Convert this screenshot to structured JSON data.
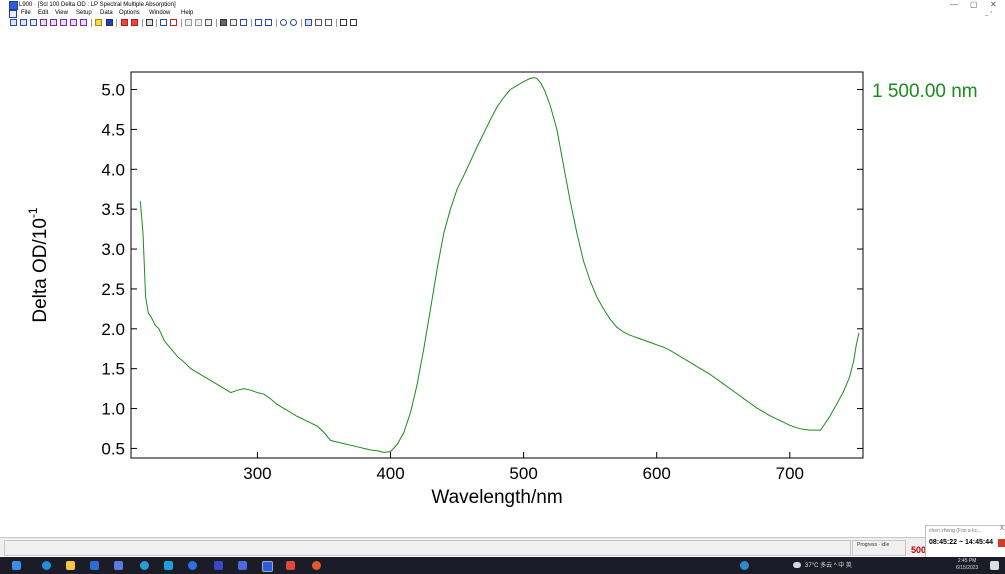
{
  "window": {
    "title": "L900 · [Scl 100 Delta OD : LP Spectral Multiple Absorption]",
    "minimize": "—",
    "maximize": "▢",
    "close": "✕",
    "mdi_buttons": "_ ▫"
  },
  "menu": [
    "File",
    "Edit",
    "View",
    "Setup",
    "Data",
    "Options",
    "Window",
    "Help"
  ],
  "chart_data": {
    "type": "line",
    "title": "",
    "xlabel": "Wavelength/nm",
    "ylabel_main": "Delta OD/10",
    "ylabel_sup": "-1",
    "xlim": [
      205,
      755
    ],
    "ylim": [
      0.38,
      5.22
    ],
    "xticks": [
      "300",
      "400",
      "500",
      "600",
      "700"
    ],
    "yticks": [
      "0.5",
      "1.0",
      "1.5",
      "2.0",
      "2.5",
      "3.0",
      "3.5",
      "4.0",
      "4.5",
      "5.0"
    ],
    "right_annotation": "1 500.00 nm",
    "grid": false,
    "series_color": "#1a8c1a",
    "series": [
      {
        "x": [
          212,
          214,
          216,
          218,
          220,
          223,
          226,
          230,
          235,
          240,
          245,
          250,
          255,
          260,
          265,
          270,
          275,
          280,
          285,
          290,
          295,
          300,
          305,
          310,
          315,
          320,
          325,
          330,
          335,
          340,
          345,
          350,
          355,
          360,
          365,
          370,
          375,
          380,
          385,
          390,
          395,
          400,
          405,
          410,
          415,
          420,
          425,
          430,
          435,
          440,
          445,
          450,
          455,
          460,
          465,
          470,
          475,
          480,
          485,
          490,
          495,
          500,
          505,
          508,
          510,
          513,
          516,
          520,
          525,
          530,
          535,
          540,
          545,
          550,
          555,
          560,
          565,
          570,
          575,
          580,
          585,
          590,
          595,
          600,
          605,
          610,
          615,
          620,
          625,
          630,
          635,
          640,
          645,
          650,
          655,
          660,
          665,
          670,
          675,
          680,
          685,
          690,
          695,
          700,
          705,
          710,
          715,
          720,
          723,
          726,
          730,
          735,
          740,
          745,
          748,
          750,
          752
        ],
        "y": [
          3.6,
          3.2,
          2.4,
          2.2,
          2.15,
          2.05,
          2.0,
          1.85,
          1.75,
          1.65,
          1.58,
          1.5,
          1.45,
          1.4,
          1.35,
          1.3,
          1.25,
          1.2,
          1.23,
          1.25,
          1.23,
          1.2,
          1.18,
          1.12,
          1.05,
          1.0,
          0.95,
          0.9,
          0.86,
          0.82,
          0.78,
          0.7,
          0.6,
          0.58,
          0.56,
          0.54,
          0.52,
          0.5,
          0.48,
          0.47,
          0.45,
          0.46,
          0.55,
          0.7,
          0.95,
          1.3,
          1.75,
          2.25,
          2.75,
          3.2,
          3.5,
          3.75,
          3.92,
          4.1,
          4.28,
          4.45,
          4.62,
          4.78,
          4.9,
          5.0,
          5.05,
          5.1,
          5.14,
          5.15,
          5.14,
          5.08,
          4.98,
          4.8,
          4.5,
          4.05,
          3.6,
          3.2,
          2.85,
          2.6,
          2.4,
          2.25,
          2.12,
          2.02,
          1.96,
          1.92,
          1.89,
          1.86,
          1.83,
          1.8,
          1.77,
          1.73,
          1.68,
          1.63,
          1.58,
          1.53,
          1.48,
          1.43,
          1.37,
          1.31,
          1.25,
          1.19,
          1.13,
          1.07,
          1.01,
          0.96,
          0.91,
          0.87,
          0.83,
          0.79,
          0.76,
          0.74,
          0.73,
          0.73,
          0.73,
          0.8,
          0.9,
          1.05,
          1.2,
          1.4,
          1.6,
          1.8,
          1.95
        ]
      }
    ]
  },
  "status": {
    "progress_label": "Progress · idle",
    "number": "500",
    "notification_sender": "chen zheng  (Fon a kc...",
    "notification_close": "X",
    "notification_time": "08:45:22 ~ 14:45:44"
  },
  "taskbar": {
    "weather": "37°C 多云  ^  中 英",
    "time": "2:45 PM",
    "date": "6/15/2023"
  }
}
